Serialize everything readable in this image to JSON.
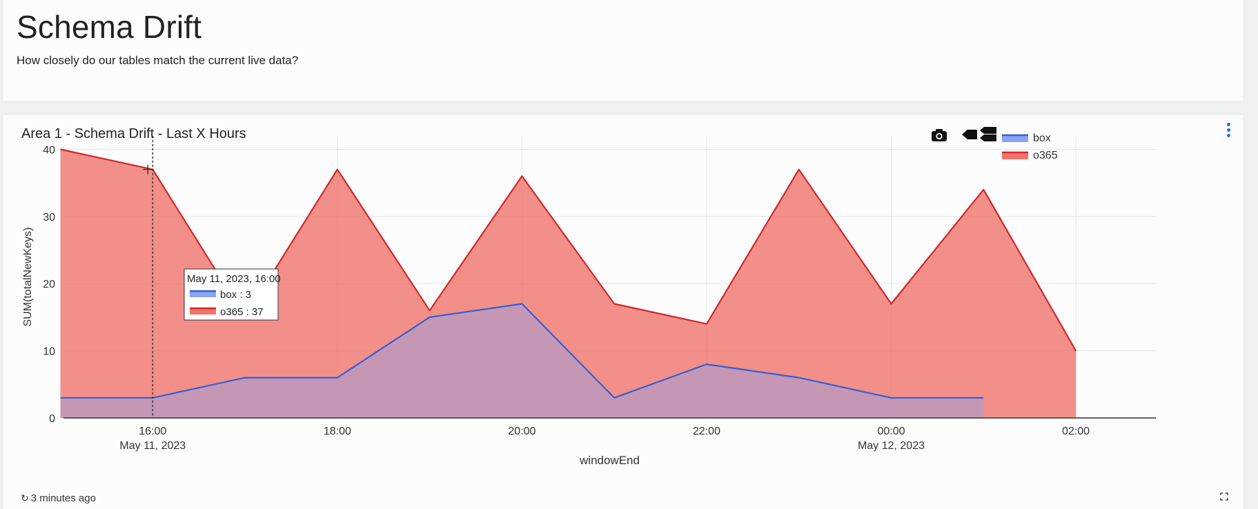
{
  "header": {
    "title": "Schema Drift",
    "subtitle": "How closely do our tables match the current live data?"
  },
  "panel": {
    "title": "Area 1 - Schema Drift - Last X Hours",
    "refresh_text": "3 minutes ago",
    "refresh_icon": "refresh-icon",
    "menu_icon": "kebab-menu-icon",
    "expand_icon": "expand-icon"
  },
  "toolbar": {
    "icons": [
      "camera-icon",
      "compare-hover-icon",
      "closest-hover-icon"
    ]
  },
  "tooltip": {
    "header": "May 11, 2023, 16:00",
    "rows": [
      "box : 3",
      "o365 : 37"
    ]
  },
  "chart_data": {
    "type": "area",
    "xlabel": "windowEnd",
    "ylabel": "SUM(totalNewKeys)",
    "ylim": [
      0,
      42
    ],
    "yticks": [
      0,
      10,
      20,
      30,
      40
    ],
    "xlim": [
      "2023-05-11 15:02",
      "2023-05-12 02:52"
    ],
    "xticks": [
      {
        "value": "2023-05-11 16:00",
        "label": "16:00",
        "sublabel": "May 11, 2023"
      },
      {
        "value": "2023-05-11 18:00",
        "label": "18:00",
        "sublabel": ""
      },
      {
        "value": "2023-05-11 20:00",
        "label": "20:00",
        "sublabel": ""
      },
      {
        "value": "2023-05-11 22:00",
        "label": "22:00",
        "sublabel": ""
      },
      {
        "value": "2023-05-12 00:00",
        "label": "00:00",
        "sublabel": "May 12, 2023"
      },
      {
        "value": "2023-05-12 02:00",
        "label": "02:00",
        "sublabel": ""
      }
    ],
    "grid": true,
    "legend_position": "top-right",
    "hover_x": "2023-05-11 16:00",
    "series": [
      {
        "name": "o365",
        "color": "#d0262b",
        "fill": "#f0736b",
        "x": [
          "2023-05-11 15:00",
          "2023-05-11 16:00",
          "2023-05-11 17:00",
          "2023-05-11 18:00",
          "2023-05-11 19:00",
          "2023-05-11 20:00",
          "2023-05-11 21:00",
          "2023-05-11 22:00",
          "2023-05-11 23:00",
          "2023-05-12 00:00",
          "2023-05-12 01:00",
          "2023-05-12 02:00"
        ],
        "y": [
          40,
          37,
          15,
          37,
          16,
          36,
          17,
          14,
          37,
          17,
          34,
          10
        ]
      },
      {
        "name": "box",
        "color": "#2f5fd8",
        "fill": "#8aa3f2",
        "x": [
          "2023-05-11 15:00",
          "2023-05-11 16:00",
          "2023-05-11 17:00",
          "2023-05-11 18:00",
          "2023-05-11 19:00",
          "2023-05-11 20:00",
          "2023-05-11 21:00",
          "2023-05-11 22:00",
          "2023-05-11 23:00",
          "2023-05-12 00:00",
          "2023-05-12 01:00"
        ],
        "y": [
          3,
          3,
          6,
          6,
          15,
          17,
          3,
          8,
          6,
          3,
          3
        ]
      }
    ]
  }
}
